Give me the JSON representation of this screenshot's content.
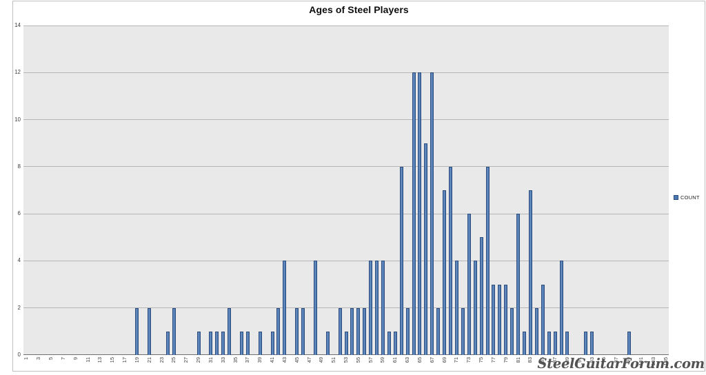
{
  "chart_data": {
    "type": "bar",
    "title": "Ages of Steel Players",
    "series": [
      {
        "name": "COUNT",
        "points": [
          {
            "age": 19,
            "count": 2
          },
          {
            "age": 21,
            "count": 2
          },
          {
            "age": 24,
            "count": 1
          },
          {
            "age": 25,
            "count": 2
          },
          {
            "age": 29,
            "count": 1
          },
          {
            "age": 31,
            "count": 1
          },
          {
            "age": 32,
            "count": 1
          },
          {
            "age": 33,
            "count": 1
          },
          {
            "age": 34,
            "count": 2
          },
          {
            "age": 36,
            "count": 1
          },
          {
            "age": 37,
            "count": 1
          },
          {
            "age": 39,
            "count": 1
          },
          {
            "age": 41,
            "count": 1
          },
          {
            "age": 42,
            "count": 2
          },
          {
            "age": 43,
            "count": 4
          },
          {
            "age": 45,
            "count": 2
          },
          {
            "age": 46,
            "count": 2
          },
          {
            "age": 48,
            "count": 4
          },
          {
            "age": 50,
            "count": 1
          },
          {
            "age": 52,
            "count": 2
          },
          {
            "age": 53,
            "count": 1
          },
          {
            "age": 54,
            "count": 2
          },
          {
            "age": 55,
            "count": 2
          },
          {
            "age": 56,
            "count": 2
          },
          {
            "age": 57,
            "count": 4
          },
          {
            "age": 58,
            "count": 4
          },
          {
            "age": 59,
            "count": 4
          },
          {
            "age": 60,
            "count": 1
          },
          {
            "age": 61,
            "count": 1
          },
          {
            "age": 62,
            "count": 8
          },
          {
            "age": 63,
            "count": 2
          },
          {
            "age": 64,
            "count": 12
          },
          {
            "age": 65,
            "count": 12
          },
          {
            "age": 66,
            "count": 9
          },
          {
            "age": 67,
            "count": 12
          },
          {
            "age": 68,
            "count": 2
          },
          {
            "age": 69,
            "count": 7
          },
          {
            "age": 70,
            "count": 8
          },
          {
            "age": 71,
            "count": 4
          },
          {
            "age": 72,
            "count": 2
          },
          {
            "age": 73,
            "count": 6
          },
          {
            "age": 74,
            "count": 4
          },
          {
            "age": 75,
            "count": 5
          },
          {
            "age": 76,
            "count": 8
          },
          {
            "age": 77,
            "count": 3
          },
          {
            "age": 78,
            "count": 3
          },
          {
            "age": 79,
            "count": 3
          },
          {
            "age": 80,
            "count": 2
          },
          {
            "age": 81,
            "count": 6
          },
          {
            "age": 82,
            "count": 1
          },
          {
            "age": 83,
            "count": 7
          },
          {
            "age": 84,
            "count": 2
          },
          {
            "age": 85,
            "count": 3
          },
          {
            "age": 86,
            "count": 1
          },
          {
            "age": 87,
            "count": 1
          },
          {
            "age": 88,
            "count": 4
          },
          {
            "age": 89,
            "count": 1
          },
          {
            "age": 92,
            "count": 1
          },
          {
            "age": 93,
            "count": 1
          },
          {
            "age": 99,
            "count": 1
          }
        ]
      }
    ],
    "x_axis": {
      "min": 1,
      "max": 105,
      "label_step": 2
    },
    "y_axis": {
      "min": 0,
      "max": 14,
      "tick_step": 2
    },
    "grid": true,
    "legend_position": "right-middle"
  },
  "watermark": {
    "text": "SteelGuitarForum.com"
  },
  "colors": {
    "bar_fill": "#4b78b1",
    "bar_highlight": "#6f93c4",
    "bar_border": "#2d4d7c",
    "plot_bg": "#e9e9e9",
    "gridline": "#b5b5b5",
    "axis_line": "#6e6e6e",
    "tick_text": "#3d3d3d",
    "title_text": "#0d0d0d",
    "frame_border": "#bfbfbf",
    "watermark_text": "#4a4a4a"
  }
}
